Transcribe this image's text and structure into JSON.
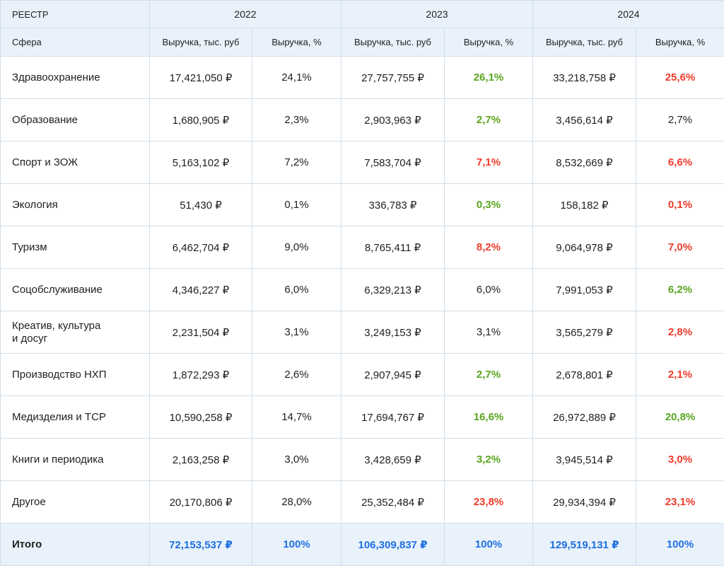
{
  "header": {
    "registry_label": "РЕЕСТР",
    "years": [
      "2022",
      "2023",
      "2024"
    ],
    "sphere_label": "Сфера",
    "revenue_label": "Выручка, тыс. руб",
    "share_label": "Выручка, %"
  },
  "colors": {
    "up": "#5aa51f",
    "down": "#f03a2a",
    "total": "#1f6fe0",
    "header_bg": "#e9f2fb"
  },
  "rows": [
    {
      "sphere": "Здравоохранение",
      "r2022": "17,421,050 ₽",
      "p2022": "24,1%",
      "r2023": "27,757,755 ₽",
      "p2023": "26,1%",
      "t2023": "up",
      "r2024": "33,218,758 ₽",
      "p2024": "25,6%",
      "t2024": "down"
    },
    {
      "sphere": "Образование",
      "r2022": "1,680,905 ₽",
      "p2022": "2,3%",
      "r2023": "2,903,963 ₽",
      "p2023": "2,7%",
      "t2023": "up",
      "r2024": "3,456,614 ₽",
      "p2024": "2,7%",
      "t2024": "plain"
    },
    {
      "sphere": "Спорт и ЗОЖ",
      "r2022": "5,163,102 ₽",
      "p2022": "7,2%",
      "r2023": "7,583,704 ₽",
      "p2023": "7,1%",
      "t2023": "down",
      "r2024": "8,532,669 ₽",
      "p2024": "6,6%",
      "t2024": "down"
    },
    {
      "sphere": "Экология",
      "r2022": "51,430 ₽",
      "p2022": "0,1%",
      "r2023": "336,783 ₽",
      "p2023": "0,3%",
      "t2023": "up",
      "r2024": "158,182 ₽",
      "p2024": "0,1%",
      "t2024": "down"
    },
    {
      "sphere": "Туризм",
      "r2022": "6,462,704 ₽",
      "p2022": "9,0%",
      "r2023": "8,765,411 ₽",
      "p2023": "8,2%",
      "t2023": "down",
      "r2024": "9,064,978 ₽",
      "p2024": "7,0%",
      "t2024": "down"
    },
    {
      "sphere": "Соцобслуживание",
      "r2022": "4,346,227 ₽",
      "p2022": "6,0%",
      "r2023": "6,329,213 ₽",
      "p2023": "6,0%",
      "t2023": "plain",
      "r2024": "7,991,053 ₽",
      "p2024": "6,2%",
      "t2024": "up"
    },
    {
      "sphere": "Креатив, культура\nи досуг",
      "r2022": "2,231,504 ₽",
      "p2022": "3,1%",
      "r2023": "3,249,153 ₽",
      "p2023": "3,1%",
      "t2023": "plain",
      "r2024": "3,565,279 ₽",
      "p2024": "2,8%",
      "t2024": "down"
    },
    {
      "sphere": "Производство НХП",
      "r2022": "1,872,293 ₽",
      "p2022": "2,6%",
      "r2023": "2,907,945 ₽",
      "p2023": "2,7%",
      "t2023": "up",
      "r2024": "2,678,801 ₽",
      "p2024": "2,1%",
      "t2024": "down"
    },
    {
      "sphere": "Медизделия и ТСР",
      "r2022": "10,590,258 ₽",
      "p2022": "14,7%",
      "r2023": "17,694,767 ₽",
      "p2023": "16,6%",
      "t2023": "up",
      "r2024": "26,972,889 ₽",
      "p2024": "20,8%",
      "t2024": "up"
    },
    {
      "sphere": "Книги и периодика",
      "r2022": "2,163,258 ₽",
      "p2022": "3,0%",
      "r2023": "3,428,659 ₽",
      "p2023": "3,2%",
      "t2023": "up",
      "r2024": "3,945,514 ₽",
      "p2024": "3,0%",
      "t2024": "down"
    },
    {
      "sphere": "Другое",
      "r2022": "20,170,806 ₽",
      "p2022": "28,0%",
      "r2023": "25,352,484 ₽",
      "p2023": "23,8%",
      "t2023": "down",
      "r2024": "29,934,394 ₽",
      "p2024": "23,1%",
      "t2024": "down"
    }
  ],
  "total": {
    "label": "Итого",
    "r2022": "72,153,537 ₽",
    "p2022": "100%",
    "r2023": "106,309,837 ₽",
    "p2023": "100%",
    "r2024": "129,519,131 ₽",
    "p2024": "100%"
  }
}
